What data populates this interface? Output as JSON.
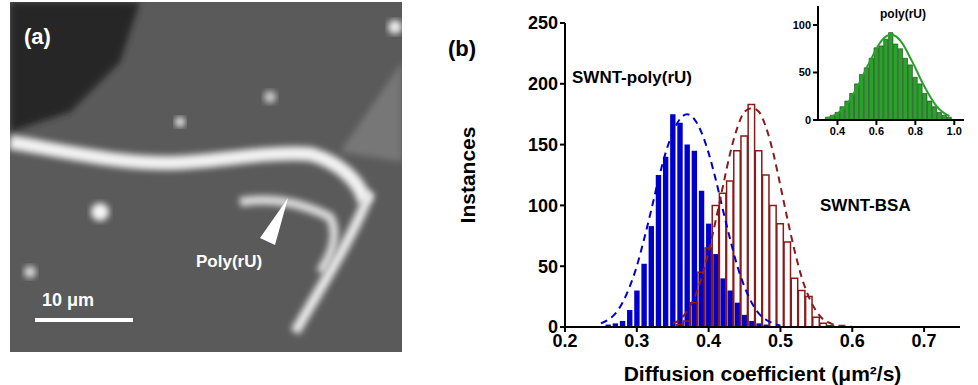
{
  "panel_a": {
    "label": "(a)",
    "annotation": "Poly(rU)",
    "scale_bar": "10 μm"
  },
  "chart_data": [
    {
      "type": "histogram",
      "label": "(b)",
      "xlabel": "Diffusion coefficient (μm²/s)",
      "ylabel": "Instances",
      "bins": [
        0.235,
        0.245,
        0.255,
        0.265,
        0.275,
        0.285,
        0.295,
        0.305,
        0.315,
        0.325,
        0.335,
        0.345,
        0.355,
        0.365,
        0.375,
        0.385,
        0.395,
        0.405,
        0.415,
        0.425,
        0.435,
        0.445,
        0.455,
        0.465,
        0.475,
        0.485,
        0.495,
        0.505,
        0.515,
        0.525,
        0.535,
        0.545,
        0.555,
        0.565,
        0.575,
        0.585,
        0.595,
        0.605,
        0.615,
        0.625
      ],
      "series": [
        {
          "name": "SWNT-poly(rU)",
          "color": "#0000cc",
          "line_style": "dashed",
          "values": [
            0,
            0,
            2,
            3,
            5,
            14,
            30,
            52,
            83,
            125,
            140,
            175,
            168,
            150,
            145,
            112,
            85,
            60,
            40,
            30,
            20,
            10,
            5,
            3,
            2,
            0,
            0,
            0,
            0,
            0,
            0,
            0,
            0,
            0,
            0,
            0,
            0,
            0,
            0
          ],
          "fit": [
            null,
            3,
            6,
            11,
            20,
            33,
            50,
            72,
            96,
            121,
            143,
            160,
            171,
            175,
            171,
            160,
            143,
            121,
            96,
            72,
            50,
            33,
            20,
            11,
            6,
            3,
            1,
            null,
            null,
            null,
            null,
            null,
            null,
            null,
            null,
            null,
            null,
            null,
            null
          ]
        },
        {
          "name": "SWNT-BSA",
          "color": "#8b1a1a",
          "line_style": "dashed",
          "values": [
            0,
            0,
            0,
            0,
            0,
            0,
            0,
            0,
            0,
            0,
            0,
            0,
            2,
            5,
            20,
            45,
            65,
            100,
            110,
            120,
            145,
            157,
            183,
            145,
            125,
            100,
            85,
            70,
            40,
            30,
            25,
            8,
            3,
            1,
            0,
            0,
            0,
            0,
            0
          ],
          "fit": [
            null,
            null,
            null,
            null,
            null,
            null,
            null,
            null,
            null,
            null,
            null,
            3,
            6,
            13,
            24,
            40,
            62,
            88,
            116,
            143,
            164,
            177,
            180,
            177,
            164,
            143,
            116,
            88,
            62,
            40,
            24,
            13,
            6,
            3,
            1,
            1,
            0,
            null,
            null
          ]
        }
      ],
      "xlim": [
        0.2,
        0.75
      ],
      "xticks": [
        0.2,
        0.3,
        0.4,
        0.5,
        0.6,
        0.7
      ],
      "ylim": [
        0,
        250
      ],
      "yticks": [
        0,
        50,
        100,
        150,
        200,
        250
      ],
      "grid": false
    },
    {
      "type": "histogram",
      "title": "poly(rU)",
      "bins": [
        0.3375,
        0.3625,
        0.3875,
        0.4125,
        0.4375,
        0.4625,
        0.4875,
        0.5125,
        0.5375,
        0.5625,
        0.5875,
        0.6125,
        0.6375,
        0.6625,
        0.6875,
        0.7125,
        0.7375,
        0.7625,
        0.7875,
        0.8125,
        0.8375,
        0.8625,
        0.8875,
        0.9125,
        0.9375,
        0.9625,
        0.9875
      ],
      "series": [
        {
          "color": "#2ca02c",
          "line_style": "solid",
          "values": [
            3,
            5,
            8,
            14,
            20,
            28,
            38,
            48,
            55,
            65,
            76,
            78,
            85,
            92,
            80,
            75,
            65,
            58,
            45,
            38,
            28,
            20,
            14,
            8,
            5,
            3
          ],
          "fit": [
            2,
            4,
            7,
            11,
            17,
            25,
            34,
            44,
            55,
            65,
            75,
            83,
            88,
            90,
            88,
            83,
            75,
            65,
            55,
            44,
            34,
            25,
            17,
            11,
            7,
            4
          ]
        }
      ],
      "xlim": [
        0.3,
        1.05
      ],
      "xticks": [
        0.4,
        0.6,
        0.8,
        {
          "value": 1,
          "label": "1.0"
        }
      ],
      "ylim": [
        0,
        120
      ],
      "yticks": [
        0,
        50,
        100
      ],
      "grid": false
    }
  ]
}
